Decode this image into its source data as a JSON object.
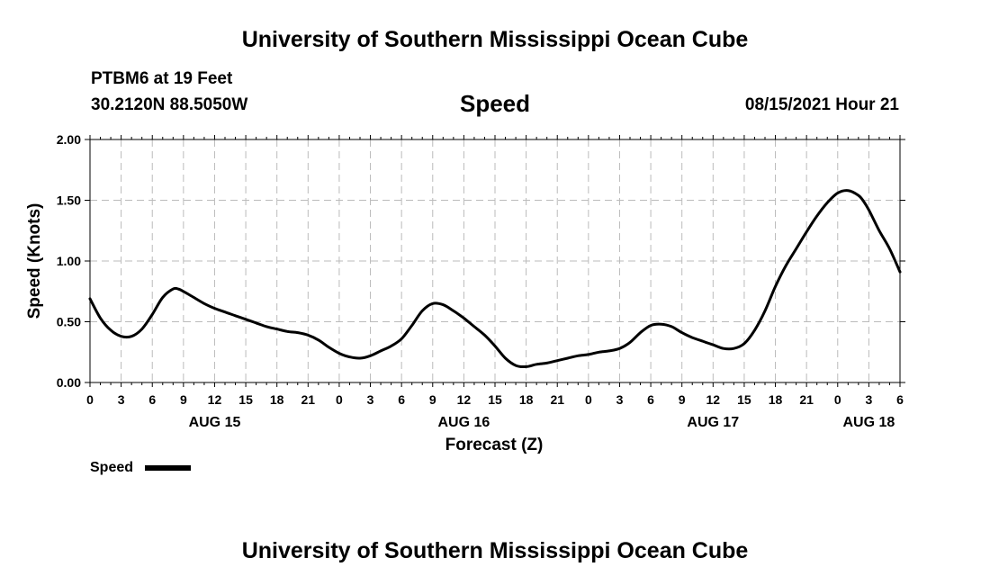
{
  "header": {
    "title": "University of Southern Mississippi Ocean Cube",
    "station": "PTBM6 at 19 Feet",
    "coords": "30.2120N  88.5050W",
    "variable": "Speed",
    "datetime": "08/15/2021 Hour 21"
  },
  "footer": {
    "title": "University of Southern Mississippi Ocean Cube"
  },
  "chart_data": {
    "type": "line",
    "title": "Speed",
    "xlabel": "Forecast (Z)",
    "ylabel": "Speed (Knots)",
    "ylim": [
      0,
      2
    ],
    "yticks": [
      0,
      0.5,
      1,
      1.5,
      2
    ],
    "ytick_labels": [
      "0.00",
      "0.50",
      "1.00",
      "1.50",
      "2.00"
    ],
    "xlim": [
      0,
      78
    ],
    "xtick_hours": [
      0,
      3,
      6,
      9,
      12,
      15,
      18,
      21,
      24,
      27,
      30,
      33,
      36,
      39,
      42,
      45,
      48,
      51,
      54,
      57,
      60,
      63,
      66,
      69,
      72,
      75,
      78
    ],
    "xtick_labels": [
      "0",
      "3",
      "6",
      "9",
      "12",
      "15",
      "18",
      "21",
      "0",
      "3",
      "6",
      "9",
      "12",
      "15",
      "18",
      "21",
      "0",
      "3",
      "6",
      "9",
      "12",
      "15",
      "18",
      "21",
      "0",
      "3",
      "6"
    ],
    "day_labels": [
      {
        "hour": 12,
        "label": "AUG 15"
      },
      {
        "hour": 36,
        "label": "AUG 16"
      },
      {
        "hour": 60,
        "label": "AUG 17"
      },
      {
        "hour": 75,
        "label": "AUG 18"
      }
    ],
    "grid": true,
    "legend": {
      "position": "bottom-left",
      "label": "Speed"
    },
    "series": [
      {
        "name": "Speed",
        "color": "#000000",
        "x": [
          0,
          1,
          2,
          3,
          4,
          5,
          6,
          7,
          8,
          8.5,
          9,
          10,
          11,
          12,
          13,
          14,
          15,
          16,
          17,
          18,
          19,
          20,
          21,
          22,
          23,
          24,
          25,
          26,
          27,
          28,
          29,
          30,
          31,
          32,
          33,
          34,
          35,
          36,
          37,
          38,
          39,
          40,
          41,
          42,
          43,
          44,
          45,
          46,
          47,
          48,
          49,
          50,
          51,
          52,
          53,
          54,
          55,
          56,
          57,
          58,
          59,
          60,
          61,
          62,
          63,
          64,
          65,
          66,
          67,
          68,
          69,
          70,
          71,
          72,
          73,
          74,
          74.5,
          75,
          76,
          77,
          78
        ],
        "values": [
          0.69,
          0.53,
          0.43,
          0.38,
          0.38,
          0.44,
          0.56,
          0.7,
          0.77,
          0.77,
          0.75,
          0.7,
          0.65,
          0.61,
          0.58,
          0.55,
          0.52,
          0.49,
          0.46,
          0.44,
          0.42,
          0.41,
          0.39,
          0.35,
          0.29,
          0.24,
          0.21,
          0.2,
          0.22,
          0.26,
          0.3,
          0.36,
          0.47,
          0.59,
          0.65,
          0.64,
          0.59,
          0.53,
          0.46,
          0.39,
          0.3,
          0.2,
          0.14,
          0.13,
          0.15,
          0.16,
          0.18,
          0.2,
          0.22,
          0.23,
          0.25,
          0.26,
          0.28,
          0.33,
          0.41,
          0.47,
          0.48,
          0.46,
          0.41,
          0.37,
          0.34,
          0.31,
          0.28,
          0.28,
          0.32,
          0.43,
          0.59,
          0.79,
          0.96,
          1.1,
          1.24,
          1.37,
          1.48,
          1.56,
          1.58,
          1.54,
          1.49,
          1.42,
          1.25,
          1.1,
          0.91
        ]
      }
    ]
  }
}
